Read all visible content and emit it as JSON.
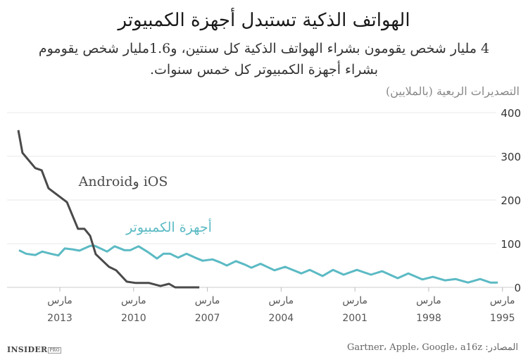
{
  "header": {
    "title": "الهواتف الذكية تستبدل أجهزة الكمبيوتر",
    "subtitle": "4 مليار شخص يقومون بشراء الهواتف الذكية كل سنتين، و1.6مليار شخص يقوموم بشراء أجهزة الكمبيوتر كل خمس سنوات."
  },
  "footer": {
    "source": "المصادر: Gartner، Apple، Google، a16z",
    "logo": "INSIDER",
    "logo_badge": "PRO"
  },
  "chart_data": {
    "type": "line",
    "title": "الهواتف الذكية تستبدل أجهزة الكمبيوتر",
    "ylabel": "التصديرات الربعية (بالملايين)",
    "ylim": [
      0,
      400
    ],
    "yticks": [
      0,
      100,
      200,
      300,
      400
    ],
    "x_reversed": true,
    "x_range": [
      1995,
      2014.75
    ],
    "xticks": [
      {
        "year": 2013,
        "month": "مارس",
        "label": "2013"
      },
      {
        "year": 2010,
        "month": "مارس",
        "label": "2010"
      },
      {
        "year": 2007,
        "month": "مارس",
        "label": "2007"
      },
      {
        "year": 2004,
        "month": "مارس",
        "label": "2004"
      },
      {
        "year": 2001,
        "month": "مارس",
        "label": "2001"
      },
      {
        "year": 1998,
        "month": "مارس",
        "label": "1998"
      },
      {
        "year": 1995,
        "month": "مارس",
        "label": "1995"
      }
    ],
    "grid": true,
    "series": [
      {
        "name": "iOS وAndroid",
        "color": "#4a4a4a",
        "x": [
          2014.69,
          2014.52,
          2014.0,
          2013.74,
          2013.46,
          2012.71,
          2012.26,
          2012.0,
          2011.77,
          2011.54,
          2011.0,
          2010.71,
          2010.28,
          2009.91,
          2009.37,
          2008.91,
          2008.56,
          2008.31,
          2007.33
        ],
        "y": [
          360,
          308,
          273,
          268,
          227,
          195,
          134,
          134,
          118,
          76,
          47,
          39,
          13,
          10,
          10,
          3,
          8,
          0,
          0
        ]
      },
      {
        "name": "أجهزة الكمبيوتر",
        "color": "#5bbac4",
        "x": [
          2014.66,
          2014.37,
          2014.0,
          2013.72,
          2013.37,
          2013.06,
          2012.8,
          2012.48,
          2012.2,
          2011.77,
          2011.57,
          2011.08,
          2010.77,
          2010.37,
          2010.14,
          2009.8,
          2009.42,
          2009.05,
          2008.79,
          2008.51,
          2008.19,
          2007.85,
          2007.5,
          2007.19,
          2006.79,
          2006.47,
          2006.21,
          2005.84,
          2005.47,
          2005.21,
          2004.84,
          2004.27,
          2003.84,
          2003.18,
          2002.84,
          2002.32,
          2001.89,
          2001.46,
          2000.92,
          2000.35,
          1999.89,
          1999.26,
          1998.83,
          1998.26,
          1997.83,
          1997.34,
          1996.91,
          1996.4,
          1995.91,
          1995.49,
          1995.19
        ],
        "y": [
          85,
          77,
          74,
          82,
          77,
          73,
          89,
          87,
          84,
          95,
          95,
          82,
          94,
          85,
          85,
          94,
          81,
          66,
          77,
          77,
          68,
          77,
          68,
          61,
          64,
          57,
          50,
          60,
          52,
          45,
          54,
          39,
          47,
          32,
          40,
          26,
          40,
          29,
          40,
          29,
          37,
          21,
          32,
          18,
          24,
          16,
          19,
          11,
          19,
          11,
          11
        ]
      }
    ]
  }
}
